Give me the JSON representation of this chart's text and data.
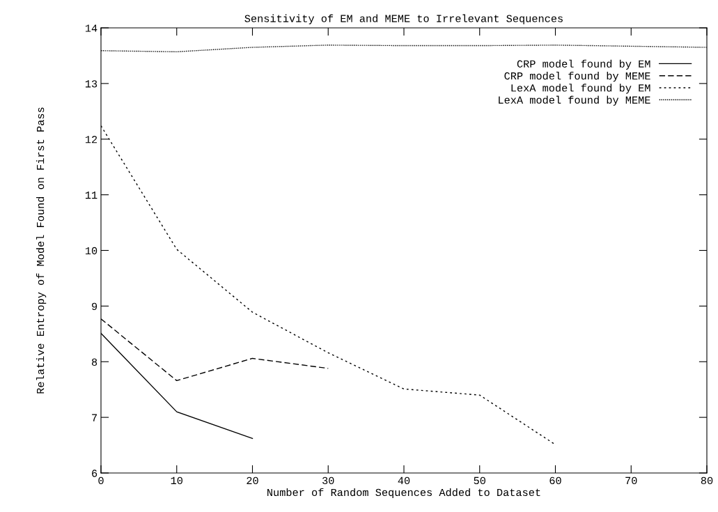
{
  "chart_data": {
    "type": "line",
    "title": "Sensitivity of EM and MEME to Irrelevant Sequences",
    "xlabel": "Number of Random Sequences Added to Dataset",
    "ylabel": "Relative Entropy of Model Found on First Pass",
    "xlim": [
      0,
      80
    ],
    "xticks": [
      0,
      10,
      20,
      30,
      40,
      50,
      60,
      70,
      80
    ],
    "ylim": [
      6,
      14
    ],
    "yticks": [
      6,
      7,
      8,
      9,
      10,
      11,
      12,
      13,
      14
    ],
    "grid": false,
    "legend": "top right",
    "series": [
      {
        "name": "CRP model found by EM",
        "color": "#000000",
        "line_style": "solid",
        "x": [
          0,
          10,
          20
        ],
        "values": [
          8.51,
          7.1,
          6.62
        ]
      },
      {
        "name": "CRP model found by MEME",
        "color": "#000000",
        "line_style": "dashed",
        "x": [
          0,
          10,
          20,
          30
        ],
        "values": [
          8.77,
          7.66,
          8.06,
          7.88
        ]
      },
      {
        "name": "LexA model found by EM",
        "color": "#000000",
        "line_style": "shortdash",
        "x": [
          0,
          10,
          20,
          30,
          40,
          50,
          60
        ],
        "values": [
          12.24,
          10.02,
          8.89,
          8.16,
          7.51,
          7.4,
          6.51
        ]
      },
      {
        "name": "LexA model found by MEME",
        "color": "#000000",
        "line_style": "dotted",
        "x": [
          0,
          10,
          20,
          30,
          40,
          50,
          60,
          70,
          80
        ],
        "values": [
          13.59,
          13.57,
          13.65,
          13.69,
          13.68,
          13.68,
          13.69,
          13.67,
          13.65
        ]
      }
    ]
  }
}
